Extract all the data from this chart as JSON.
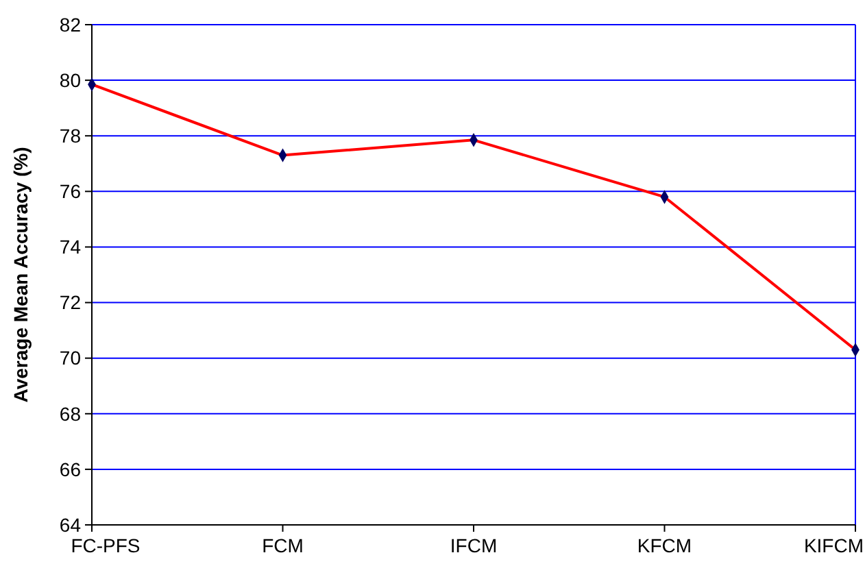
{
  "chart_data": {
    "type": "line",
    "ylabel": "Average Mean Accuracy (%)",
    "categories": [
      "FC-PFS",
      "FCM",
      "IFCM",
      "KFCM",
      "KIFCM"
    ],
    "series": [
      {
        "color": "#ff0000",
        "values": [
          79.85,
          77.3,
          77.85,
          75.8,
          70.3
        ]
      }
    ],
    "ylim": [
      64,
      82
    ],
    "yticks": [
      64,
      66,
      68,
      70,
      72,
      74,
      76,
      78,
      80,
      82
    ],
    "grid": "y",
    "marker": "diamond"
  }
}
